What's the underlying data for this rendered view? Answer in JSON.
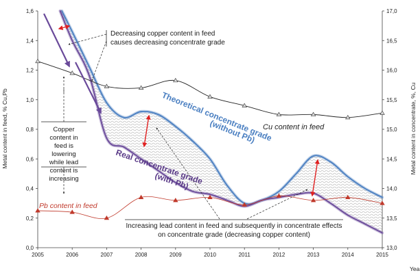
{
  "chart_data": {
    "type": "line",
    "x": [
      2005,
      2006,
      2007,
      2008,
      2009,
      2010,
      2011,
      2012,
      2013,
      2014,
      2015
    ],
    "xlabel": "Year",
    "ylabel": "Metal content  in feed, % Cu,Pb",
    "y2label": "Metal content in concentrate,  %,  Cu",
    "ylim": [
      0,
      1.6
    ],
    "y2lim": [
      13.0,
      17.0
    ],
    "x_ticks": [
      "2005",
      "2006",
      "2007",
      "2008",
      "2009",
      "2010",
      "2011",
      "2012",
      "2013",
      "2014",
      "2015"
    ],
    "y_ticks": [
      "0,0",
      "0,2",
      "0,4",
      "0,6",
      "0,8",
      "1,0",
      "1,2",
      "1,4",
      "1,6"
    ],
    "y2_ticks": [
      "13,0",
      "13,5",
      "14,0",
      "14,5",
      "15,0",
      "15,5",
      "16,0",
      "16,5",
      "17,0"
    ],
    "grid": false,
    "series": [
      {
        "name": "Cu content in feed",
        "axis": "left",
        "color": "#222222",
        "x": [
          2005,
          2006,
          2007,
          2008,
          2009,
          2010,
          2011,
          2012,
          2013,
          2014,
          2015
        ],
        "values": [
          1.26,
          1.18,
          1.09,
          1.08,
          1.13,
          1.02,
          0.96,
          0.9,
          0.9,
          0.88,
          0.91
        ]
      },
      {
        "name": "Pb content in feed",
        "axis": "left",
        "color": "#c0392b",
        "x": [
          2005,
          2006,
          2007,
          2008,
          2009,
          2010,
          2011,
          2012,
          2013,
          2014,
          2015
        ],
        "values": [
          0.25,
          0.24,
          0.2,
          0.34,
          0.32,
          0.34,
          0.29,
          0.35,
          0.32,
          0.34,
          0.3
        ]
      },
      {
        "name": "Theoretical concentrate grade (without Pb)",
        "axis": "right",
        "color": "#4a7fc1",
        "x": [
          2005.7,
          2006,
          2006.5,
          2007,
          2007.5,
          2008,
          2008.5,
          2009,
          2009.5,
          2010,
          2010.5,
          2011,
          2011.5,
          2012,
          2012.5,
          2013,
          2013.5,
          2014,
          2014.5,
          2015
        ],
        "values": [
          17.0,
          16.65,
          16.05,
          15.45,
          15.2,
          15.3,
          15.25,
          15.05,
          14.8,
          14.5,
          14.05,
          13.75,
          13.8,
          13.95,
          14.25,
          14.55,
          14.45,
          14.2,
          14.0,
          13.85
        ]
      },
      {
        "name": "Real concentrate grade (with Pb)",
        "axis": "right",
        "color": "#6a4a9a",
        "x": [
          2005.65,
          2006,
          2006.5,
          2007,
          2007.5,
          2008,
          2008.5,
          2009,
          2009.5,
          2010,
          2010.5,
          2011,
          2011.5,
          2012,
          2012.5,
          2013,
          2013.5,
          2014,
          2014.5,
          2015
        ],
        "values": [
          17.0,
          16.5,
          15.9,
          14.85,
          14.7,
          14.5,
          14.3,
          14.1,
          13.95,
          13.9,
          13.8,
          13.7,
          13.8,
          13.85,
          13.9,
          13.92,
          13.75,
          13.55,
          13.4,
          13.25
        ]
      }
    ],
    "annotations": {
      "top_box": [
        "Decreasing copper content in feed",
        "causes decreasing concentrate grade"
      ],
      "left_box": [
        "Copper",
        "content in",
        "feed is",
        "lowering",
        "while lead",
        "content is",
        "increasing"
      ],
      "bottom_box": [
        "Increasing lead content in feed and subsequently in concentrate effects",
        "on concentrate grade (decreasing copper content)"
      ],
      "theoretical_label": [
        "Theoretical concentrate grade",
        "(without Pb)"
      ],
      "real_label": [
        "Real concentrate grade",
        "(with Pb)"
      ],
      "cu_label": "Cu content in feed",
      "pb_label": "Pb content in feed"
    },
    "colors": {
      "theoretical": "#4a7fc1",
      "real": "#6a4a9a",
      "cu": "#222222",
      "pb": "#c0392b",
      "arrow": "#e02020",
      "hatch": "#9a9a9a"
    }
  }
}
